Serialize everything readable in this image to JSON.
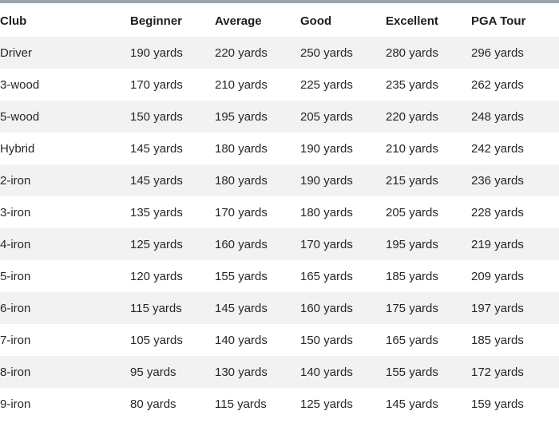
{
  "table": {
    "headers": [
      "Club",
      "Beginner",
      "Average",
      "Good",
      "Excellent",
      "PGA Tour"
    ],
    "rows": [
      [
        "Driver",
        "190 yards",
        "220 yards",
        "250 yards",
        "280 yards",
        "296 yards"
      ],
      [
        "3-wood",
        "170 yards",
        "210 yards",
        "225 yards",
        "235 yards",
        "262 yards"
      ],
      [
        "5-wood",
        "150 yards",
        "195 yards",
        "205 yards",
        "220 yards",
        "248 yards"
      ],
      [
        "Hybrid",
        "145 yards",
        "180 yards",
        "190 yards",
        "210 yards",
        "242 yards"
      ],
      [
        "2-iron",
        "145 yards",
        "180 yards",
        "190 yards",
        "215 yards",
        "236 yards"
      ],
      [
        "3-iron",
        "135 yards",
        "170 yards",
        "180 yards",
        "205 yards",
        "228 yards"
      ],
      [
        "4-iron",
        "125 yards",
        "160 yards",
        "170 yards",
        "195 yards",
        "219 yards"
      ],
      [
        "5-iron",
        "120 yards",
        "155 yards",
        "165 yards",
        "185 yards",
        "209 yards"
      ],
      [
        "6-iron",
        "115 yards",
        "145 yards",
        "160 yards",
        "175 yards",
        "197 yards"
      ],
      [
        "7-iron",
        "105 yards",
        "140 yards",
        "150 yards",
        "165 yards",
        "185 yards"
      ],
      [
        "8-iron",
        "95 yards",
        "130 yards",
        "140 yards",
        "155 yards",
        "172 yards"
      ],
      [
        "9-iron",
        "80 yards",
        "115 yards",
        "125 yards",
        "145 yards",
        "159 yards"
      ]
    ]
  },
  "colors": {
    "stripe": "#f2f2f2",
    "background": "#ffffff",
    "top_rule": "#9aa4ac"
  }
}
